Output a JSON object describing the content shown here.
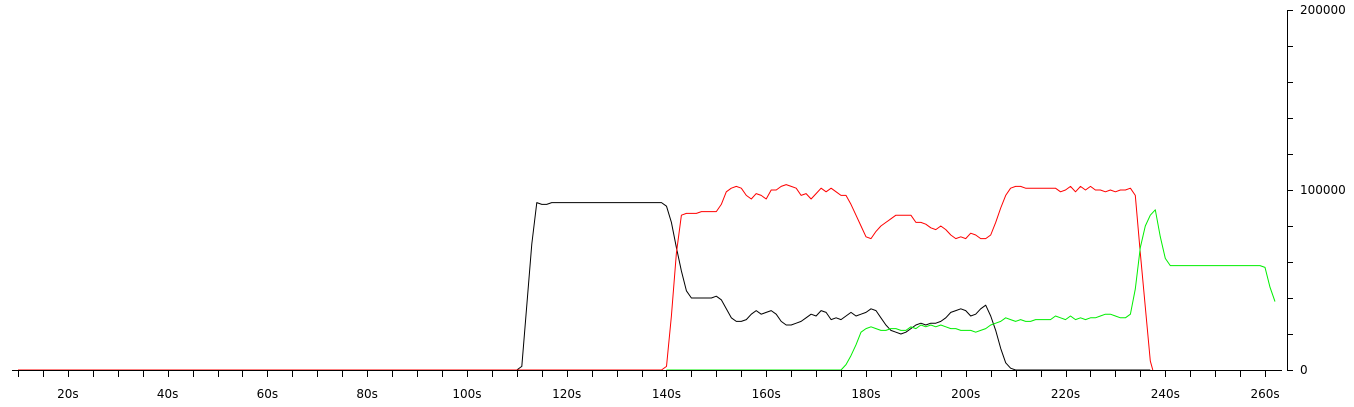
{
  "chart_data": {
    "type": "line",
    "title": "",
    "xlabel": "",
    "ylabel": "",
    "xlim": [
      10,
      263
    ],
    "ylim": [
      0,
      200000
    ],
    "grid": false,
    "legend": "none",
    "x_tick_labels": [
      "20s",
      "40s",
      "60s",
      "80s",
      "100s",
      "120s",
      "140s",
      "160s",
      "180s",
      "200s",
      "220s",
      "240s",
      "260s"
    ],
    "x_tick_values": [
      20,
      40,
      60,
      80,
      100,
      120,
      140,
      160,
      180,
      200,
      220,
      240,
      260
    ],
    "x_minor_step": 5,
    "y_tick_labels": [
      "0",
      "100000",
      "200000"
    ],
    "y_tick_values": [
      0,
      100000,
      200000
    ],
    "y_minor_step": 20000,
    "series": [
      {
        "color": "#000000",
        "points": [
          [
            10,
            0
          ],
          [
            110,
            0
          ],
          [
            111,
            2000
          ],
          [
            113,
            70000
          ],
          [
            114,
            93000
          ],
          [
            115,
            92000
          ],
          [
            116,
            92000
          ],
          [
            117,
            93000
          ],
          [
            120,
            93000
          ],
          [
            130,
            93000
          ],
          [
            139,
            93000
          ],
          [
            140,
            91000
          ],
          [
            141,
            82000
          ],
          [
            142,
            68000
          ],
          [
            143,
            55000
          ],
          [
            144,
            44000
          ],
          [
            145,
            40000
          ],
          [
            147,
            40000
          ],
          [
            149,
            40000
          ],
          [
            150,
            41000
          ],
          [
            151,
            39000
          ],
          [
            152,
            34000
          ],
          [
            153,
            29000
          ],
          [
            154,
            27000
          ],
          [
            155,
            27000
          ],
          [
            156,
            28000
          ],
          [
            157,
            31000
          ],
          [
            158,
            33000
          ],
          [
            159,
            31000
          ],
          [
            160,
            32000
          ],
          [
            161,
            33000
          ],
          [
            162,
            31000
          ],
          [
            163,
            27000
          ],
          [
            164,
            25000
          ],
          [
            165,
            25000
          ],
          [
            166,
            26000
          ],
          [
            167,
            27000
          ],
          [
            168,
            29000
          ],
          [
            169,
            31000
          ],
          [
            170,
            30000
          ],
          [
            171,
            33000
          ],
          [
            172,
            32000
          ],
          [
            173,
            28000
          ],
          [
            174,
            29000
          ],
          [
            175,
            28000
          ],
          [
            176,
            30000
          ],
          [
            177,
            32000
          ],
          [
            178,
            30000
          ],
          [
            179,
            31000
          ],
          [
            180,
            32000
          ],
          [
            181,
            34000
          ],
          [
            182,
            33000
          ],
          [
            183,
            29000
          ],
          [
            184,
            25000
          ],
          [
            185,
            22000
          ],
          [
            186,
            21000
          ],
          [
            187,
            20000
          ],
          [
            188,
            21000
          ],
          [
            189,
            23000
          ],
          [
            190,
            25000
          ],
          [
            191,
            26000
          ],
          [
            192,
            25000
          ],
          [
            193,
            26000
          ],
          [
            194,
            26000
          ],
          [
            195,
            27000
          ],
          [
            196,
            29000
          ],
          [
            197,
            32000
          ],
          [
            198,
            33000
          ],
          [
            199,
            34000
          ],
          [
            200,
            33000
          ],
          [
            201,
            30000
          ],
          [
            202,
            31000
          ],
          [
            203,
            34000
          ],
          [
            204,
            36000
          ],
          [
            205,
            30000
          ],
          [
            206,
            22000
          ],
          [
            207,
            12000
          ],
          [
            208,
            4000
          ],
          [
            209,
            1000
          ],
          [
            210,
            0
          ],
          [
            220,
            0
          ],
          [
            230,
            0
          ],
          [
            237,
            0
          ]
        ]
      },
      {
        "color": "#ff0000",
        "points": [
          [
            10,
            0
          ],
          [
            139,
            0
          ],
          [
            140,
            2000
          ],
          [
            141,
            30000
          ],
          [
            142,
            65000
          ],
          [
            143,
            86000
          ],
          [
            144,
            87000
          ],
          [
            145,
            87000
          ],
          [
            146,
            87000
          ],
          [
            147,
            88000
          ],
          [
            148,
            88000
          ],
          [
            149,
            88000
          ],
          [
            150,
            88000
          ],
          [
            151,
            92000
          ],
          [
            152,
            99000
          ],
          [
            153,
            101000
          ],
          [
            154,
            102000
          ],
          [
            155,
            101000
          ],
          [
            156,
            97000
          ],
          [
            157,
            95000
          ],
          [
            158,
            98000
          ],
          [
            159,
            97000
          ],
          [
            160,
            95000
          ],
          [
            161,
            100000
          ],
          [
            162,
            100000
          ],
          [
            163,
            102000
          ],
          [
            164,
            103000
          ],
          [
            165,
            102000
          ],
          [
            166,
            101000
          ],
          [
            167,
            97000
          ],
          [
            168,
            98000
          ],
          [
            169,
            95000
          ],
          [
            170,
            98000
          ],
          [
            171,
            101000
          ],
          [
            172,
            99000
          ],
          [
            173,
            101000
          ],
          [
            174,
            99000
          ],
          [
            175,
            97000
          ],
          [
            176,
            97000
          ],
          [
            177,
            92000
          ],
          [
            178,
            86000
          ],
          [
            179,
            80000
          ],
          [
            180,
            74000
          ],
          [
            181,
            73000
          ],
          [
            182,
            77000
          ],
          [
            183,
            80000
          ],
          [
            184,
            82000
          ],
          [
            185,
            84000
          ],
          [
            186,
            86000
          ],
          [
            187,
            86000
          ],
          [
            188,
            86000
          ],
          [
            189,
            86000
          ],
          [
            190,
            82000
          ],
          [
            191,
            82000
          ],
          [
            192,
            81000
          ],
          [
            193,
            79000
          ],
          [
            194,
            78000
          ],
          [
            195,
            80000
          ],
          [
            196,
            78000
          ],
          [
            197,
            75000
          ],
          [
            198,
            73000
          ],
          [
            199,
            74000
          ],
          [
            200,
            73000
          ],
          [
            201,
            76000
          ],
          [
            202,
            75000
          ],
          [
            203,
            73000
          ],
          [
            204,
            73000
          ],
          [
            205,
            75000
          ],
          [
            206,
            82000
          ],
          [
            207,
            90000
          ],
          [
            208,
            97000
          ],
          [
            209,
            101000
          ],
          [
            210,
            102000
          ],
          [
            211,
            102000
          ],
          [
            212,
            101000
          ],
          [
            214,
            101000
          ],
          [
            216,
            101000
          ],
          [
            218,
            101000
          ],
          [
            219,
            99000
          ],
          [
            220,
            100000
          ],
          [
            221,
            102000
          ],
          [
            222,
            99000
          ],
          [
            223,
            102000
          ],
          [
            224,
            100000
          ],
          [
            225,
            102000
          ],
          [
            226,
            100000
          ],
          [
            227,
            100000
          ],
          [
            228,
            99000
          ],
          [
            229,
            100000
          ],
          [
            230,
            99000
          ],
          [
            231,
            100000
          ],
          [
            232,
            100000
          ],
          [
            233,
            101000
          ],
          [
            234,
            97000
          ],
          [
            235,
            65000
          ],
          [
            236,
            35000
          ],
          [
            237,
            5000
          ],
          [
            237.5,
            0
          ]
        ]
      },
      {
        "color": "#00ee00",
        "points": [
          [
            140,
            0
          ],
          [
            150,
            0
          ],
          [
            160,
            0
          ],
          [
            170,
            0
          ],
          [
            175,
            0
          ],
          [
            176,
            3000
          ],
          [
            177,
            8000
          ],
          [
            178,
            14000
          ],
          [
            179,
            21000
          ],
          [
            180,
            23000
          ],
          [
            181,
            24000
          ],
          [
            182,
            23000
          ],
          [
            183,
            22000
          ],
          [
            184,
            22000
          ],
          [
            185,
            23000
          ],
          [
            186,
            23000
          ],
          [
            187,
            22000
          ],
          [
            188,
            22000
          ],
          [
            189,
            24000
          ],
          [
            190,
            23000
          ],
          [
            191,
            25000
          ],
          [
            192,
            24000
          ],
          [
            193,
            25000
          ],
          [
            194,
            24000
          ],
          [
            195,
            25000
          ],
          [
            196,
            24000
          ],
          [
            197,
            23000
          ],
          [
            198,
            23000
          ],
          [
            199,
            22000
          ],
          [
            200,
            22000
          ],
          [
            201,
            22000
          ],
          [
            202,
            21000
          ],
          [
            203,
            22000
          ],
          [
            204,
            23000
          ],
          [
            205,
            25000
          ],
          [
            206,
            26000
          ],
          [
            207,
            27000
          ],
          [
            208,
            29000
          ],
          [
            209,
            28000
          ],
          [
            210,
            27000
          ],
          [
            211,
            28000
          ],
          [
            212,
            27000
          ],
          [
            213,
            27000
          ],
          [
            214,
            28000
          ],
          [
            215,
            28000
          ],
          [
            216,
            28000
          ],
          [
            217,
            28000
          ],
          [
            218,
            30000
          ],
          [
            219,
            29000
          ],
          [
            220,
            28000
          ],
          [
            221,
            30000
          ],
          [
            222,
            28000
          ],
          [
            223,
            29000
          ],
          [
            224,
            28000
          ],
          [
            225,
            29000
          ],
          [
            226,
            29000
          ],
          [
            227,
            30000
          ],
          [
            228,
            31000
          ],
          [
            229,
            31000
          ],
          [
            230,
            30000
          ],
          [
            231,
            29000
          ],
          [
            232,
            29000
          ],
          [
            233,
            31000
          ],
          [
            234,
            45000
          ],
          [
            235,
            68000
          ],
          [
            236,
            80000
          ],
          [
            237,
            86000
          ],
          [
            238,
            89000
          ],
          [
            239,
            74000
          ],
          [
            240,
            62000
          ],
          [
            241,
            58000
          ],
          [
            242,
            58000
          ],
          [
            250,
            58000
          ],
          [
            258,
            58000
          ],
          [
            259,
            58000
          ],
          [
            260,
            57000
          ],
          [
            261,
            46000
          ],
          [
            262,
            38000
          ]
        ]
      }
    ]
  }
}
